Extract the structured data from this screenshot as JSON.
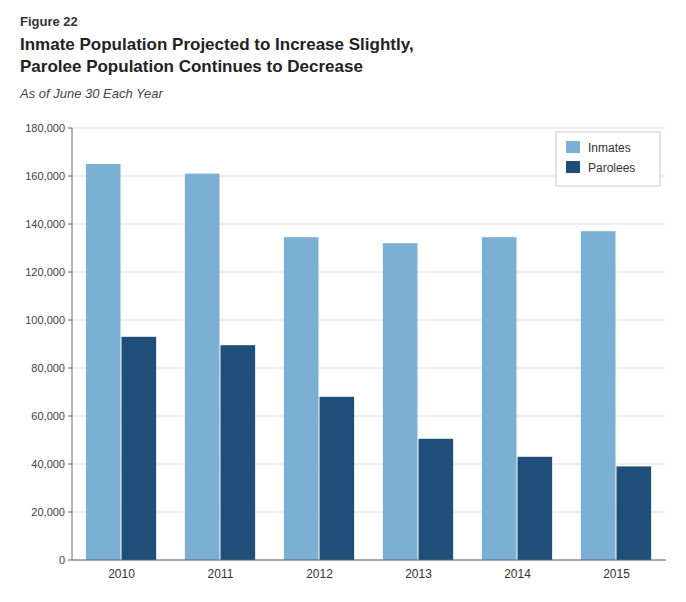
{
  "chart_data": {
    "type": "bar",
    "annotations": [
      "Figure 22"
    ],
    "title": [
      "Inmate Population Projected to Increase Slightly,",
      "Parolee Population Continues to Decrease"
    ],
    "subtitle": "As of June 30 Each Year",
    "categories": [
      "2010",
      "2011",
      "2012",
      "2013",
      "2014",
      "2015"
    ],
    "series": [
      {
        "name": "Inmates",
        "color": "#7BAFD4",
        "values": [
          165000,
          161000,
          134500,
          132000,
          134500,
          137000
        ]
      },
      {
        "name": "Parolees",
        "color": "#1F4E79",
        "values": [
          93000,
          89500,
          68000,
          50500,
          43000,
          39000
        ]
      }
    ],
    "ylim": [
      0,
      180000
    ],
    "yticks": [
      0,
      {
        "value": 20000,
        "label": "20,000"
      },
      {
        "value": 40000,
        "label": "40,000"
      },
      {
        "value": 60000,
        "label": "60,000"
      },
      {
        "value": 80000,
        "label": "80,000"
      },
      {
        "value": 100000,
        "label": "100,000"
      },
      {
        "value": 120000,
        "label": "120,000"
      },
      {
        "value": 140000,
        "label": "140,000"
      },
      {
        "value": 160000,
        "label": "160,000"
      },
      {
        "value": 180000,
        "label": "180,000"
      }
    ],
    "grid": true,
    "legend": "upper right"
  }
}
